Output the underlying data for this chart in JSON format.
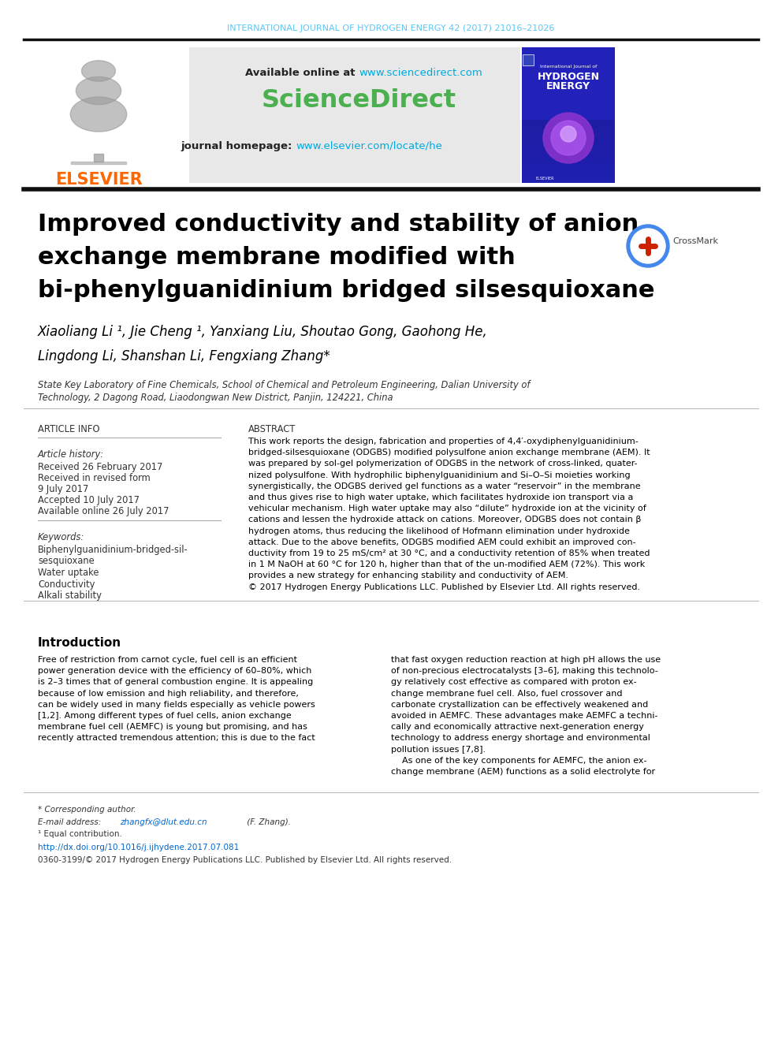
{
  "bg_color": "#ffffff",
  "header_journal_text": "INTERNATIONAL JOURNAL OF HYDROGEN ENERGY 42 (2017) 21016–21026",
  "header_journal_color": "#5bc8f5",
  "elsevier_logo_color": "#ff6600",
  "elsevier_text": "ELSEVIER",
  "available_online_text": "Available online at ",
  "sciencedirect_url": "www.sciencedirect.com",
  "sciencedirect_logo_text": "ScienceDirect",
  "sciencedirect_logo_color": "#4caf50",
  "journal_homepage_text": "journal homepage: ",
  "journal_homepage_url": "www.elsevier.com/locate/he",
  "url_color": "#00aadd",
  "header_box_bg": "#e8e8e8",
  "paper_title_line1": "Improved conductivity and stability of anion",
  "paper_title_line2": "exchange membrane modified with",
  "paper_title_line3": "bi-phenylguanidinium bridged silsesquioxane",
  "title_color": "#000000",
  "authors_line1": "Xiaoliang Li ¹, Jie Cheng ¹, Yanxiang Liu, Shoutao Gong, Gaohong He,",
  "authors_line2": "Lingdong Li, Shanshan Li, Fengxiang Zhang*",
  "authors_color": "#000000",
  "affiliation_line1": "State Key Laboratory of Fine Chemicals, School of Chemical and Petroleum Engineering, Dalian University of",
  "affiliation_line2": "Technology, 2 Dagong Road, Liaodongwan New District, Panjin, 124221, China",
  "affiliation_color": "#333333",
  "article_info_title": "ARTICLE INFO",
  "article_info_color": "#333333",
  "article_history_label": "Article history:",
  "received_label": "Received 26 February 2017",
  "received_revised_label": "Received in revised form",
  "received_revised_date": "9 July 2017",
  "accepted_label": "Accepted 10 July 2017",
  "available_label": "Available online 26 July 2017",
  "keywords_label": "Keywords:",
  "keyword1": "Biphenylguanidinium-bridged-sil-",
  "keyword2": "sesquioxane",
  "keyword3": "Water uptake",
  "keyword4": "Conductivity",
  "keyword5": "Alkali stability",
  "abstract_title": "ABSTRACT",
  "abstract_color": "#000000",
  "abstract_lines": [
    "This work reports the design, fabrication and properties of 4,4′-oxydiphenylguanidinium-",
    "bridged-silsesquioxane (ODGBS) modified polysulfone anion exchange membrane (AEM). It",
    "was prepared by sol-gel polymerization of ODGBS in the network of cross-linked, quater-",
    "nized polysulfone. With hydrophilic biphenylguanidinium and Si–O–Si moieties working",
    "synergistically, the ODGBS derived gel functions as a water “reservoir” in the membrane",
    "and thus gives rise to high water uptake, which facilitates hydroxide ion transport via a",
    "vehicular mechanism. High water uptake may also “dilute” hydroxide ion at the vicinity of",
    "cations and lessen the hydroxide attack on cations. Moreover, ODGBS does not contain β",
    "hydrogen atoms, thus reducing the likelihood of Hofmann elimination under hydroxide",
    "attack. Due to the above benefits, ODGBS modified AEM could exhibit an improved con-",
    "ductivity from 19 to 25 mS/cm² at 30 °C, and a conductivity retention of 85% when treated",
    "in 1 M NaOH at 60 °C for 120 h, higher than that of the un-modified AEM (72%). This work",
    "provides a new strategy for enhancing stability and conductivity of AEM.",
    "© 2017 Hydrogen Energy Publications LLC. Published by Elsevier Ltd. All rights reserved."
  ],
  "intro_title": "Introduction",
  "intro_left_lines": [
    "Free of restriction from carnot cycle, fuel cell is an efficient",
    "power generation device with the efficiency of 60–80%, which",
    "is 2–3 times that of general combustion engine. It is appealing",
    "because of low emission and high reliability, and therefore,",
    "can be widely used in many fields especially as vehicle powers",
    "[1,2]. Among different types of fuel cells, anion exchange",
    "membrane fuel cell (AEMFC) is young but promising, and has",
    "recently attracted tremendous attention; this is due to the fact"
  ],
  "intro_right_lines": [
    "that fast oxygen reduction reaction at high pH allows the use",
    "of non-precious electrocatalysts [3–6], making this technolo-",
    "gy relatively cost effective as compared with proton ex-",
    "change membrane fuel cell. Also, fuel crossover and",
    "carbonate crystallization can be effectively weakened and",
    "avoided in AEMFC. These advantages make AEMFC a techni-",
    "cally and economically attractive next-generation energy",
    "technology to address energy shortage and environmental",
    "pollution issues [7,8].",
    "    As one of the key components for AEMFC, the anion ex-",
    "change membrane (AEM) functions as a solid electrolyte for"
  ],
  "footer_corresponding": "* Corresponding author.",
  "footer_email_label": "E-mail address: ",
  "footer_email": "zhangfx@dlut.edu.cn",
  "footer_email_suffix": " (F. Zhang).",
  "footer_equal": "¹ Equal contribution.",
  "footer_doi": "http://dx.doi.org/10.1016/j.ijhydene.2017.07.081",
  "footer_copyright": "0360-3199/© 2017 Hydrogen Energy Publications LLC. Published by Elsevier Ltd. All rights reserved.",
  "footer_url_color": "#0066cc"
}
